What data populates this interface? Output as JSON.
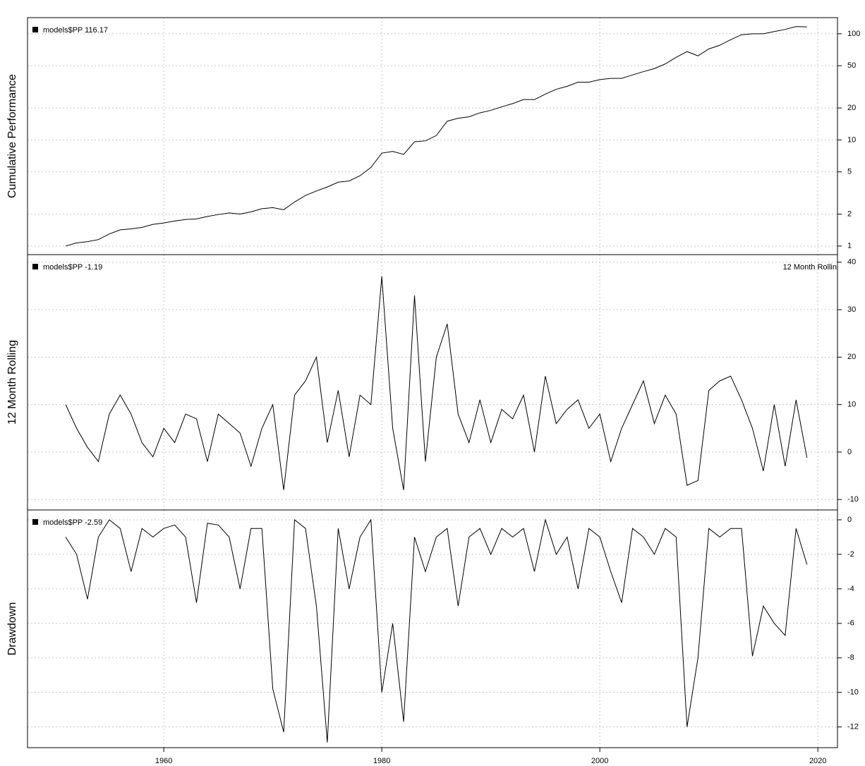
{
  "chart_data": [
    {
      "type": "line",
      "ylabel": "Cumulative Performance",
      "legend": "models$PP 116.17",
      "log_y": true,
      "grid": true,
      "xlim": [
        1947.5,
        2021.8
      ],
      "ylim": [
        0.83,
        142
      ],
      "yticks": [
        1,
        2,
        5,
        10,
        20,
        50,
        100
      ],
      "series": [
        {
          "name": "models$PP",
          "color": "#000000",
          "x": [
            1951,
            1952,
            1953,
            1954,
            1955,
            1956,
            1957,
            1958,
            1959,
            1960,
            1961,
            1962,
            1963,
            1964,
            1965,
            1966,
            1967,
            1968,
            1969,
            1970,
            1971,
            1972,
            1973,
            1974,
            1975,
            1976,
            1977,
            1978,
            1979,
            1980,
            1981,
            1982,
            1983,
            1984,
            1985,
            1986,
            1987,
            1988,
            1989,
            1990,
            1991,
            1992,
            1993,
            1994,
            1995,
            1996,
            1997,
            1998,
            1999,
            2000,
            2001,
            2002,
            2003,
            2004,
            2005,
            2006,
            2007,
            2008,
            2009,
            2010,
            2011,
            2012,
            2013,
            2014,
            2015,
            2016,
            2017,
            2018,
            2019
          ],
          "values": [
            1.0,
            1.07,
            1.1,
            1.15,
            1.3,
            1.42,
            1.45,
            1.5,
            1.6,
            1.65,
            1.72,
            1.78,
            1.8,
            1.9,
            1.98,
            2.05,
            2.0,
            2.1,
            2.25,
            2.3,
            2.2,
            2.6,
            3.0,
            3.3,
            3.6,
            4.0,
            4.1,
            4.6,
            5.5,
            7.5,
            7.8,
            7.3,
            9.6,
            9.8,
            11,
            15,
            16,
            16.5,
            18,
            19,
            20.5,
            22,
            24,
            24,
            27,
            30,
            32,
            35,
            35,
            37,
            38,
            38,
            41,
            44,
            47,
            52,
            60,
            68,
            62,
            72,
            78,
            88,
            98,
            100,
            100,
            105,
            110,
            117,
            116.17
          ]
        }
      ]
    },
    {
      "type": "line",
      "ylabel": "12 Month Rolling",
      "legend": "models$PP -1.19",
      "annotation": "12 Month Rollin",
      "grid": true,
      "xlim": [
        1947.5,
        2021.8
      ],
      "ylim": [
        -12.2,
        41.6
      ],
      "yticks": [
        -10,
        0,
        10,
        20,
        30,
        40
      ],
      "series": [
        {
          "name": "models$PP",
          "color": "#000000",
          "x": [
            1951,
            1952,
            1953,
            1954,
            1955,
            1956,
            1957,
            1958,
            1959,
            1960,
            1961,
            1962,
            1963,
            1964,
            1965,
            1966,
            1967,
            1968,
            1969,
            1970,
            1971,
            1972,
            1973,
            1974,
            1975,
            1976,
            1977,
            1978,
            1979,
            1980,
            1981,
            1982,
            1983,
            1984,
            1985,
            1986,
            1987,
            1988,
            1989,
            1990,
            1991,
            1992,
            1993,
            1994,
            1995,
            1996,
            1997,
            1998,
            1999,
            2000,
            2001,
            2002,
            2003,
            2004,
            2005,
            2006,
            2007,
            2008,
            2009,
            2010,
            2011,
            2012,
            2013,
            2014,
            2015,
            2016,
            2017,
            2018,
            2019
          ],
          "values": [
            10,
            5,
            1,
            -2,
            8,
            12,
            8,
            2,
            -1,
            5,
            2,
            8,
            7,
            -2,
            8,
            6,
            4,
            -3,
            5,
            10,
            -8,
            12,
            15,
            20,
            2,
            13,
            -1,
            12,
            10,
            37,
            5,
            -8,
            33,
            -2,
            20,
            27,
            8,
            2,
            11,
            2,
            9,
            7,
            12,
            0,
            16,
            6,
            9,
            11,
            5,
            8,
            -2,
            5,
            10,
            15,
            6,
            12,
            8,
            -7,
            -6,
            13,
            15,
            16,
            11,
            5,
            -4,
            10,
            -3,
            11,
            -1.19
          ]
        }
      ]
    },
    {
      "type": "line",
      "ylabel": "Drawdown",
      "legend": "models$PP -2.59",
      "grid": true,
      "xlim": [
        1947.5,
        2021.8
      ],
      "ylim": [
        -13.2,
        0.57
      ],
      "yticks": [
        0,
        -2,
        -4,
        -6,
        -8,
        -10,
        -12
      ],
      "xticks": [
        1960,
        1980,
        2000,
        2020
      ],
      "series": [
        {
          "name": "models$PP",
          "color": "#000000",
          "x": [
            1951,
            1952,
            1953,
            1954,
            1955,
            1956,
            1957,
            1958,
            1959,
            1960,
            1961,
            1962,
            1963,
            1964,
            1965,
            1966,
            1967,
            1968,
            1969,
            1970,
            1971,
            1972,
            1973,
            1974,
            1975,
            1976,
            1977,
            1978,
            1979,
            1980,
            1981,
            1982,
            1983,
            1984,
            1985,
            1986,
            1987,
            1988,
            1989,
            1990,
            1991,
            1992,
            1993,
            1994,
            1995,
            1996,
            1997,
            1998,
            1999,
            2000,
            2001,
            2002,
            2003,
            2004,
            2005,
            2006,
            2007,
            2008,
            2009,
            2010,
            2011,
            2012,
            2013,
            2014,
            2015,
            2016,
            2017,
            2018,
            2019
          ],
          "values": [
            -1,
            -2,
            -4.6,
            -1,
            0,
            -0.5,
            -3,
            -0.5,
            -1,
            -0.5,
            -0.3,
            -1,
            -4.8,
            -0.2,
            -0.3,
            -1,
            -4,
            -0.5,
            -0.5,
            -9.8,
            -12.3,
            0,
            -0.5,
            -5,
            -12.9,
            -0.5,
            -4,
            -1,
            0,
            -10,
            -6,
            -11.7,
            -1,
            -3,
            -1,
            -0.5,
            -5,
            -1,
            -0.5,
            -2,
            -0.5,
            -1,
            -0.5,
            -3,
            0,
            -2,
            -1,
            -4,
            -0.5,
            -1,
            -3,
            -4.8,
            -0.5,
            -1,
            -2,
            -0.5,
            -1,
            -12,
            -8,
            -0.5,
            -1,
            -0.5,
            -0.5,
            -7.9,
            -5,
            -6,
            -6.7,
            -0.5,
            -2.59
          ]
        }
      ]
    }
  ]
}
